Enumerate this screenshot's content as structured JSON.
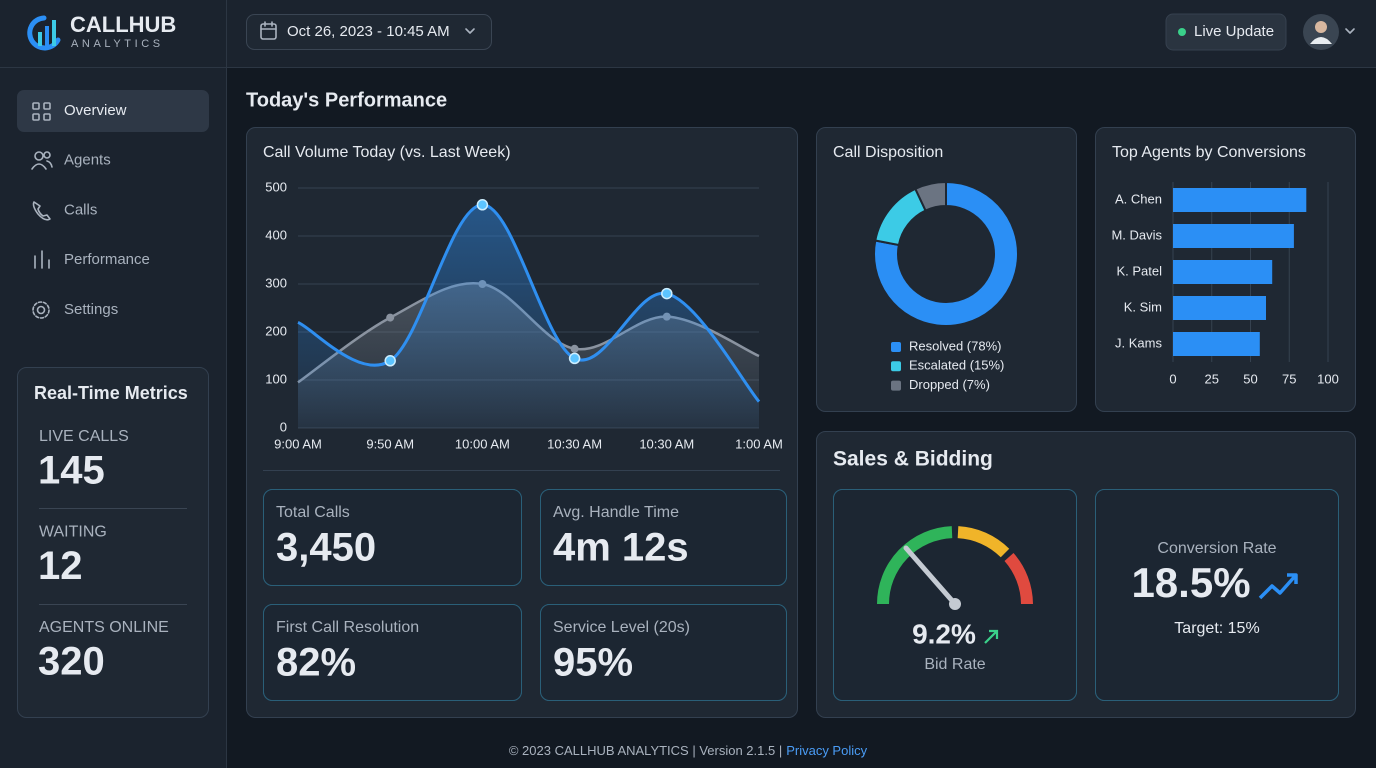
{
  "brand": {
    "name": "CALLHUB",
    "tagline": "ANALYTICS"
  },
  "header": {
    "date": "Oct 26, 2023 - 10:45 AM",
    "live": "Live Update"
  },
  "nav": [
    "Overview",
    "Agents",
    "Calls",
    "Performance",
    "Settings"
  ],
  "realtime": {
    "title": "Real-Time Metrics",
    "metrics": [
      {
        "label": "LIVE CALLS",
        "value": "145"
      },
      {
        "label": "WAITING",
        "value": "12"
      },
      {
        "label": "AGENTS ONLINE",
        "value": "320"
      }
    ]
  },
  "section_title": "Today's Performance",
  "kpis": [
    {
      "label": "Total Calls",
      "value": "3,450"
    },
    {
      "label": "Avg. Handle Time",
      "value": "4m 12s"
    },
    {
      "label": "First Call Resolution",
      "value": "82%"
    },
    {
      "label": "Service Level (20s)",
      "value": "95%"
    }
  ],
  "chart_data": [
    {
      "type": "line",
      "title": "Call Volume Today (vs. Last Week)",
      "categories": [
        "9:00 AM",
        "9:50 AM",
        "10:00 AM",
        "10:30 AM",
        "10:30 AM",
        "1:00 AM"
      ],
      "series": [
        {
          "color": "#2f8ff0",
          "values": [
            220,
            140,
            465,
            145,
            280,
            55
          ]
        },
        {
          "color": "#8a93a0",
          "values": [
            95,
            230,
            300,
            165,
            232,
            150
          ]
        }
      ],
      "ylim": [
        0,
        500
      ],
      "yticks": [
        0,
        100,
        200,
        300,
        400,
        500
      ],
      "grid": true
    },
    {
      "type": "donut",
      "title": "Call Disposition",
      "categories": [
        "Resolved (78%)",
        "Escalated (15%)",
        "Dropped (7%)"
      ],
      "values": [
        78,
        15,
        7
      ],
      "colors": [
        "#2b8ff5",
        "#3ccbe6",
        "#6b7482"
      ]
    },
    {
      "type": "bar",
      "orientation": "horizontal",
      "title": "Top Agents by Conversions",
      "categories": [
        "A. Chen",
        "M. Davis",
        "K. Patel",
        "K. Sim",
        "J. Kams"
      ],
      "values": [
        86,
        78,
        64,
        60,
        56
      ],
      "color": "#2b8ff5",
      "xlim": [
        0,
        100
      ],
      "xticks": [
        0,
        25,
        50,
        75,
        100
      ],
      "grid": true
    }
  ],
  "sales": {
    "title": "Sales & Bidding",
    "bid_value": "9.2%",
    "bid_label": "Bid Rate",
    "conversion_label": "Conversion Rate",
    "conversion_value": "18.5%",
    "target": "Target: 15%"
  },
  "footer": {
    "text": "© 2023 CALLHUB ANALYTICS | Version 2.1.5 |",
    "link": "Privacy Policy"
  }
}
